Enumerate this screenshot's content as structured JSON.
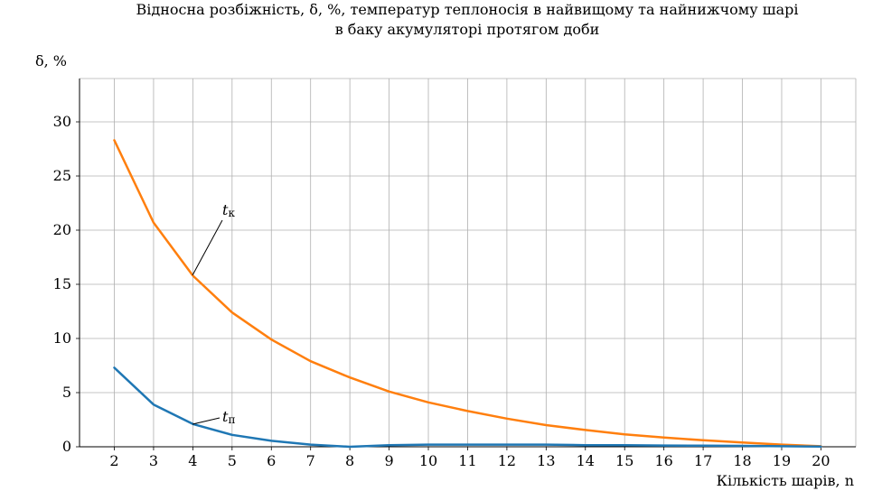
{
  "chart_data": {
    "type": "line",
    "title_line1": "Відносна розбіжність, δ, %, температур теплоносія в найвищому та найнижчому шарі",
    "title_line2": "в баку акумуляторі протягом доби",
    "ylabel": "δ, %",
    "xlabel": "Кількість шарів, n",
    "x": [
      2,
      3,
      4,
      5,
      6,
      7,
      8,
      9,
      10,
      11,
      12,
      13,
      14,
      15,
      16,
      17,
      18,
      19,
      20
    ],
    "ylim": [
      0,
      34
    ],
    "yticks": [
      0,
      5,
      10,
      15,
      20,
      25,
      30
    ],
    "grid": true,
    "series": [
      {
        "label_main": "t",
        "label_sub": "к",
        "color": "#ff7f0e",
        "values": [
          28.3,
          20.7,
          15.8,
          12.4,
          9.9,
          7.9,
          6.4,
          5.1,
          4.1,
          3.3,
          2.6,
          2.0,
          1.55,
          1.15,
          0.85,
          0.6,
          0.4,
          0.2,
          0.05
        ]
      },
      {
        "label_main": "t",
        "label_sub": "п",
        "color": "#1f77b4",
        "values": [
          7.3,
          3.9,
          2.1,
          1.1,
          0.55,
          0.2,
          0.0,
          0.15,
          0.2,
          0.2,
          0.2,
          0.2,
          0.15,
          0.15,
          0.12,
          0.1,
          0.08,
          0.05,
          0.02
        ]
      }
    ]
  }
}
